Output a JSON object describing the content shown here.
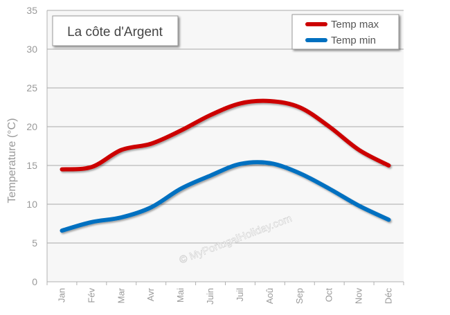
{
  "chart_data": {
    "type": "line",
    "title": "La côte d'Argent",
    "xlabel": "",
    "ylabel": "Temperature (°C)",
    "categories": [
      "Jan",
      "Fév",
      "Mar",
      "Avr",
      "Mai",
      "Juin",
      "Juil",
      "Aoû",
      "Sep",
      "Oct",
      "Nov",
      "Déc"
    ],
    "ylim": [
      0,
      35
    ],
    "yticks": [
      0,
      5,
      10,
      15,
      20,
      25,
      30,
      35
    ],
    "grid": true,
    "legend_position": "top-right",
    "series": [
      {
        "name": "Temp max",
        "color": "#cc0000",
        "values": [
          14.5,
          14.8,
          17.0,
          17.8,
          19.5,
          21.5,
          23.0,
          23.3,
          22.5,
          20.0,
          17.0,
          15.0
        ]
      },
      {
        "name": "Temp min",
        "color": "#0070c0",
        "values": [
          6.6,
          7.7,
          8.3,
          9.6,
          12.0,
          13.7,
          15.2,
          15.3,
          14.0,
          12.0,
          9.8,
          8.0
        ]
      }
    ],
    "watermark": "© MyPortugalHoliday.com"
  },
  "colors": {
    "plot_background": "#f7f7f7",
    "grid": "#a8a8a8",
    "axis_text": "#999999"
  }
}
